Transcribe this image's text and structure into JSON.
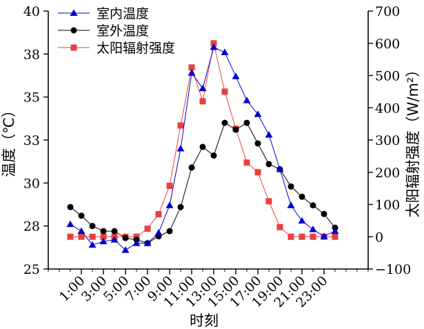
{
  "chart_data": {
    "type": "line",
    "xlabel": "时刻",
    "ylabel_left": "温度（℃）",
    "ylabel_right": "太阳辐射强度（W/m²）",
    "x_ticks": [
      "1:00",
      "3:00",
      "5:00",
      "7:00",
      "9:00",
      "11:00",
      "13:00",
      "15:00",
      "17:00",
      "19:00",
      "21:00",
      "23:00"
    ],
    "x_tick_positions": [
      1,
      3,
      5,
      7,
      9,
      11,
      13,
      15,
      17,
      19,
      21,
      23
    ],
    "xlim": [
      -2,
      27
    ],
    "y_left_ticks": [
      "25",
      "28",
      "30",
      "33",
      "35",
      "38",
      "40"
    ],
    "y_left_tick_values": [
      25,
      27.5,
      30,
      32.5,
      35,
      37.5,
      40
    ],
    "y_left_lim": [
      25,
      40
    ],
    "y_right_ticks": [
      "−100",
      "0",
      "100",
      "200",
      "300",
      "400",
      "500",
      "600",
      "700"
    ],
    "y_right_tick_values": [
      -100,
      0,
      100,
      200,
      300,
      400,
      500,
      600,
      700
    ],
    "y_right_lim": [
      -100,
      700
    ],
    "legend_position": "top-left",
    "x": [
      0,
      1,
      2,
      3,
      4,
      5,
      6,
      7,
      8,
      9,
      10,
      11,
      12,
      13,
      14,
      15,
      16,
      17,
      18,
      19,
      20,
      21,
      22,
      23,
      24
    ],
    "series": [
      {
        "name": "室内温度",
        "axis": "left",
        "color": "#0000cc",
        "marker": "triangle",
        "values": [
          27.6,
          27.2,
          26.4,
          26.6,
          26.7,
          26.1,
          26.5,
          26.5,
          27.1,
          28.7,
          32.0,
          36.4,
          35.5,
          37.9,
          37.6,
          36.2,
          34.8,
          34.0,
          32.8,
          30.8,
          28.7,
          27.8,
          27.3,
          26.9,
          27.2
        ]
      },
      {
        "name": "室外温度",
        "axis": "left",
        "color": "#000000",
        "marker": "circle",
        "values": [
          28.6,
          28.1,
          27.5,
          27.2,
          27.2,
          26.8,
          26.7,
          26.5,
          26.9,
          27.2,
          28.6,
          30.9,
          32.1,
          31.6,
          33.5,
          33.1,
          33.5,
          32.3,
          31.1,
          30.8,
          29.8,
          29.2,
          28.7,
          28.2,
          27.4
        ]
      },
      {
        "name": "太阳辐射强度",
        "axis": "right",
        "color": "#e84040",
        "marker": "square",
        "values": [
          0,
          0,
          0,
          0,
          0,
          0,
          0,
          25,
          70,
          158,
          345,
          525,
          420,
          600,
          450,
          335,
          230,
          200,
          110,
          30,
          0,
          0,
          0,
          0,
          0
        ]
      }
    ]
  }
}
